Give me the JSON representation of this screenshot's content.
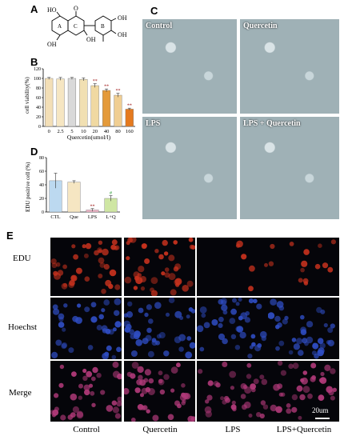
{
  "panels": {
    "A": "A",
    "B": "B",
    "C": "C",
    "D": "D",
    "E": "E"
  },
  "structure": {
    "atoms": [
      "HO",
      "O",
      "OH",
      "OH",
      "OH",
      "OH"
    ],
    "rings": [
      "A",
      "C",
      "B"
    ]
  },
  "chart_data": [
    {
      "type": "bar",
      "ylabel": "cell viability(%)",
      "xlabel": "Quercetin(umol/l)",
      "categories": [
        "0",
        "2.5",
        "5",
        "10",
        "20",
        "40",
        "80",
        "160"
      ],
      "values": [
        100,
        99,
        100,
        98,
        85,
        75,
        65,
        36
      ],
      "errors": [
        2,
        3,
        2,
        3,
        4,
        3,
        4,
        2
      ],
      "annotations": [
        "",
        "",
        "",
        "",
        "**",
        "**",
        "**",
        "**"
      ],
      "ylim": [
        0,
        120
      ],
      "yticks": [
        "0",
        "20",
        "40",
        "60",
        "80",
        "100",
        "120"
      ],
      "colors": [
        "#f3dfb7",
        "#f6e6c2",
        "#d9d9d9",
        "#f1e0b2",
        "#f0d9a2",
        "#e49a3a",
        "#f0ce92",
        "#e57a1f"
      ]
    },
    {
      "type": "bar",
      "ylabel": "EDU positive cell (%)",
      "categories": [
        "CTL",
        "Que",
        "LPS",
        "L+Q"
      ],
      "values": [
        46,
        44,
        3,
        20
      ],
      "errors": [
        11,
        2,
        2,
        4
      ],
      "annotations": [
        "",
        "",
        "**",
        "#"
      ],
      "ylim": [
        0,
        80
      ],
      "yticks": [
        "0",
        "20",
        "40",
        "60",
        "80"
      ],
      "colors": [
        "#bcd9f0",
        "#f6e6c2",
        "#f2b6c9",
        "#cfe6a3"
      ]
    }
  ],
  "microscopy_c": {
    "labels": [
      "Control",
      "Quercetin",
      "LPS",
      "LPS + Quercetin"
    ]
  },
  "fluorescence_e": {
    "rows": [
      "EDU",
      "Hoechst",
      "Merge"
    ],
    "columns": [
      "Control",
      "Quercetin",
      "LPS",
      "LPS+Quercetin"
    ],
    "scale": "20um"
  }
}
